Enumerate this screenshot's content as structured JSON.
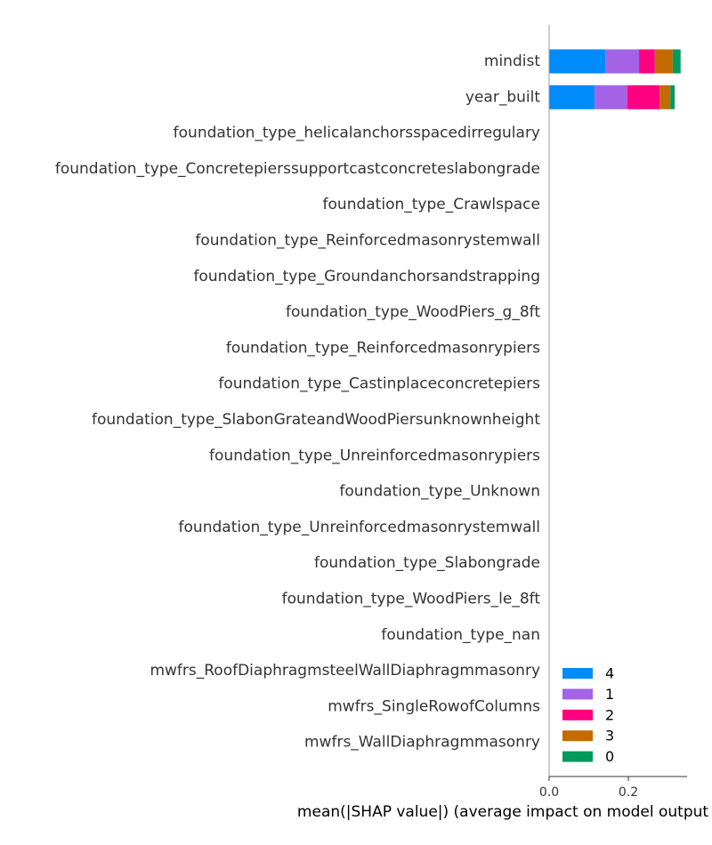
{
  "chart_data": {
    "type": "bar",
    "orientation": "horizontal",
    "stacked": true,
    "title": "",
    "xlabel": "mean(|SHAP value|) (average impact on model output magnitude)",
    "ylabel": "",
    "xlim": [
      0,
      0.35
    ],
    "xticks": [
      {
        "value": 0.0,
        "label": "0.0"
      },
      {
        "value": 0.2,
        "label": "0.2"
      }
    ],
    "categories": [
      "mindist",
      "year_built",
      "foundation_type_helicalanchorsspacedirregulary",
      "foundation_type_Concretepierssupportcastconcreteslabongrade",
      "foundation_type_Crawlspace",
      "foundation_type_Reinforcedmasonrystemwall",
      "foundation_type_Groundanchorsandstrapping",
      "foundation_type_WoodPiers_g_8ft",
      "foundation_type_Reinforcedmasonrypiers",
      "foundation_type_Castinplaceconcretepiers",
      "foundation_type_SlabonGrateandWoodPiersunknownheight",
      "foundation_type_Unreinforcedmasonrypiers",
      "foundation_type_Unknown",
      "foundation_type_Unreinforcedmasonrystemwall",
      "foundation_type_Slabongrade",
      "foundation_type_WoodPiers_le_8ft",
      "foundation_type_nan",
      "mwfrs_RoofDiaphragmsteelWallDiaphragmmasonry",
      "mwfrs_SingleRowofColumns",
      "mwfrs_WallDiaphragmmasonry"
    ],
    "series": [
      {
        "name": "4",
        "color": "#008bfb",
        "values": [
          0.142,
          0.115,
          0,
          0,
          0,
          0,
          0,
          0,
          0,
          0,
          0,
          0,
          0,
          0,
          0,
          0,
          0,
          0,
          0,
          0
        ]
      },
      {
        "name": "1",
        "color": "#a463e6",
        "values": [
          0.085,
          0.082,
          0,
          0,
          0,
          0,
          0,
          0,
          0,
          0,
          0,
          0,
          0,
          0,
          0,
          0,
          0,
          0,
          0,
          0
        ]
      },
      {
        "name": "2",
        "color": "#ff0080",
        "values": [
          0.04,
          0.082,
          0,
          0,
          0,
          0,
          0,
          0,
          0,
          0,
          0,
          0,
          0,
          0,
          0,
          0,
          0,
          0,
          0,
          0
        ]
      },
      {
        "name": "3",
        "color": "#c46b00",
        "values": [
          0.045,
          0.027,
          0,
          0,
          0,
          0,
          0,
          0,
          0,
          0,
          0,
          0,
          0,
          0,
          0,
          0,
          0,
          0,
          0,
          0
        ]
      },
      {
        "name": "0",
        "color": "#009a5e",
        "values": [
          0.02,
          0.011,
          0,
          0,
          0,
          0,
          0,
          0,
          0,
          0,
          0,
          0,
          0,
          0,
          0,
          0,
          0,
          0,
          0,
          0
        ]
      }
    ],
    "legend": {
      "placement": "bottom-right",
      "order": [
        "4",
        "1",
        "2",
        "3",
        "0"
      ]
    },
    "grid": false
  }
}
